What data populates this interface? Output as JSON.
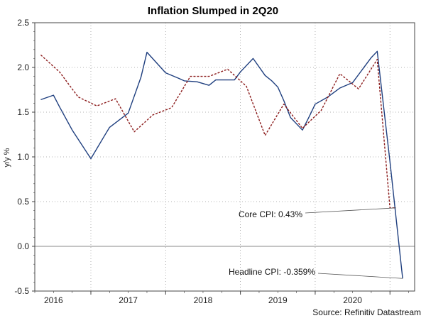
{
  "chart_data": {
    "type": "line",
    "title": "Inflation Slumped in 2Q20",
    "ylabel": "y/y %",
    "xlabel": "",
    "ylim": [
      -0.5,
      2.5
    ],
    "xlim": [
      2015.25,
      2020.33
    ],
    "y_ticks": [
      2.5,
      2.0,
      1.5,
      1.0,
      0.5,
      0.0,
      -0.5
    ],
    "y_tick_labels": [
      "2.5",
      "2.0",
      "1.5",
      "1.0",
      "0.5",
      "0.0",
      "-0.5"
    ],
    "x_ticks": [
      2016,
      2017,
      2018,
      2019,
      2020
    ],
    "x_tick_labels": [
      "2016",
      "2017",
      "2018",
      "2019",
      "2020"
    ],
    "grid": true,
    "series": [
      {
        "name": "Headline CPI",
        "style": "solid",
        "color": "#1f3f7f",
        "x": [
          2015.33,
          2015.5,
          2015.58,
          2015.75,
          2016.0,
          2016.17,
          2016.25,
          2016.5,
          2016.67,
          2016.75,
          2017.0,
          2017.17,
          2017.25,
          2017.42,
          2017.5,
          2017.58,
          2017.67,
          2017.75,
          2017.92,
          2018.0,
          2018.17,
          2018.33,
          2018.42,
          2018.5,
          2018.58,
          2018.67,
          2018.83,
          2018.92,
          2019.0,
          2019.17,
          2019.33,
          2019.5,
          2019.75,
          2019.83,
          2020.0,
          2020.17
        ],
        "y": [
          1.64,
          1.69,
          1.56,
          1.3,
          0.98,
          1.22,
          1.33,
          1.49,
          1.89,
          2.17,
          1.94,
          1.88,
          1.85,
          1.84,
          1.82,
          1.8,
          1.86,
          1.86,
          1.86,
          1.95,
          2.1,
          1.91,
          1.85,
          1.78,
          1.63,
          1.44,
          1.3,
          1.45,
          1.59,
          1.67,
          1.77,
          1.83,
          2.11,
          2.18,
          0.95,
          -0.359
        ]
      },
      {
        "name": "Core CPI",
        "style": "dashed",
        "color": "#8b1a1a",
        "x": [
          2015.33,
          2015.58,
          2015.83,
          2016.08,
          2016.33,
          2016.58,
          2016.83,
          2017.08,
          2017.33,
          2017.58,
          2017.83,
          2018.08,
          2018.33,
          2018.58,
          2018.83,
          2019.08,
          2019.33,
          2019.58,
          2019.83,
          2020.0,
          2020.08
        ],
        "y": [
          2.14,
          1.95,
          1.67,
          1.57,
          1.65,
          1.28,
          1.47,
          1.55,
          1.9,
          1.9,
          1.98,
          1.79,
          1.24,
          1.59,
          1.32,
          1.52,
          1.93,
          1.76,
          2.09,
          0.43,
          0.43
        ]
      }
    ],
    "annotations": [
      {
        "text": "Core CPI: 0.43%",
        "x": 2020.08,
        "y": 0.43
      },
      {
        "text": "Headline CPI: -0.359%",
        "x": 2020.17,
        "y": -0.359
      }
    ],
    "source": "Source: Refinitiv Datastream"
  },
  "colors": {
    "headline": "#1f3f7f",
    "core": "#8b1a1a",
    "grid": "#9a9a9a",
    "zero_line": "#888888",
    "axis": "#444444"
  }
}
